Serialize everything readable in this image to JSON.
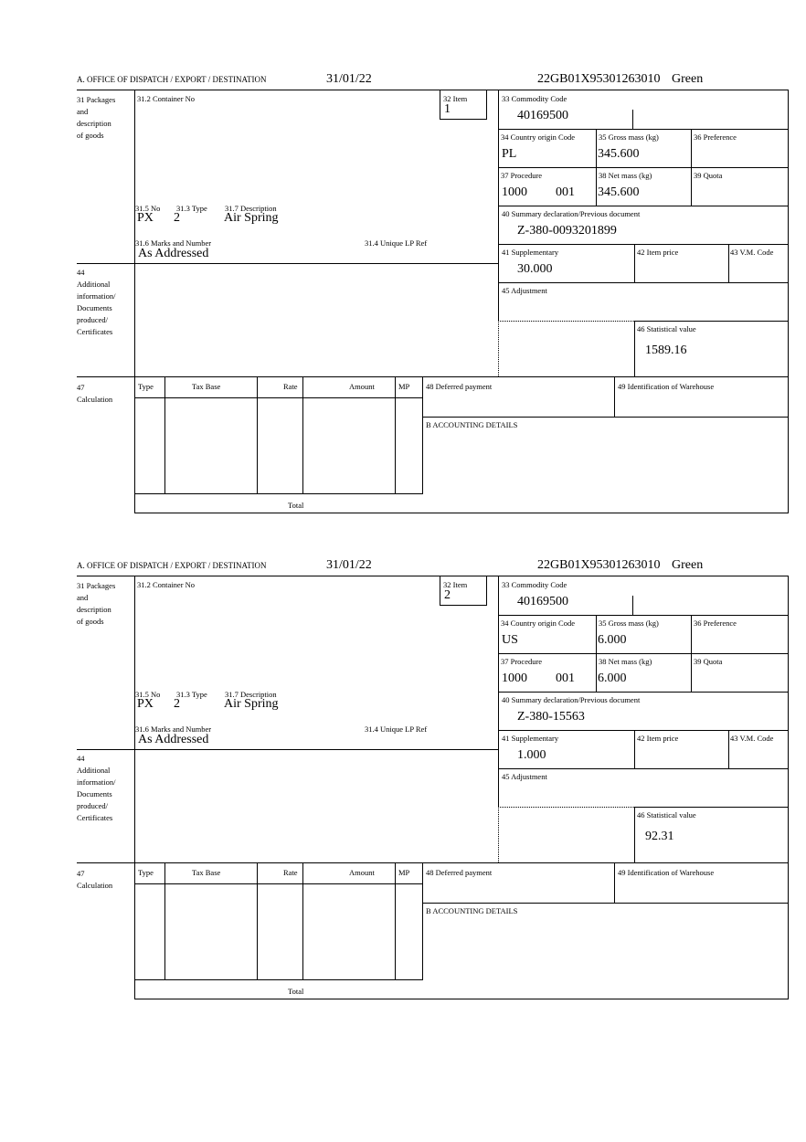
{
  "labels": {
    "office": "A.  OFFICE OF DISPATCH / EXPORT / DESTINATION",
    "box31": [
      "31 Packages",
      "and",
      "description",
      "of goods"
    ],
    "container": "31.2 Container No",
    "item": "32 Item",
    "no": "31.5 No",
    "type": "31.3 Type",
    "description": "31.7 Description",
    "marks": "31.6 Marks and Number",
    "unique": "31.4 Unique LP Ref",
    "commodity": "33 Commodity Code",
    "origin": "34 Country origin Code",
    "gross": "35 Gross mass (kg)",
    "preference": "36 Preference",
    "procedure": "37 Procedure",
    "net": "38 Net mass (kg)",
    "quota": "39 Quota",
    "summary": "40 Summary declaration/Previous document",
    "supplementary": "41 Supplementary",
    "item_price": "42 Item price",
    "vm_code": "43 V.M. Code",
    "box44": [
      "44",
      "Additional",
      "information/",
      "Documents",
      "produced/",
      "Certificates"
    ],
    "adjustment": "45 Adjustment",
    "statistical": "46 Statistical value",
    "box47": [
      "47",
      "Calculation"
    ],
    "calc_headers": [
      "Type",
      "Tax Base",
      "Rate",
      "Amount",
      "MP"
    ],
    "total": "Total",
    "deferred": "48 Deferred payment",
    "warehouse": "49 Identification of Warehouse",
    "accounting": "B ACCOUNTING DETAILS"
  },
  "items": [
    {
      "date": "31/01/22",
      "reference": "22GB01X95301263010",
      "route": "Green",
      "item_no": "1",
      "pkg_no": "PX",
      "pkg_type": "2",
      "description": "Air Spring",
      "marks": "As Addressed",
      "commodity_code": "40169500",
      "origin": "PL",
      "gross_mass": "345.600",
      "procedure": "1000",
      "procedure_add": "001",
      "net_mass": "345.600",
      "previous_document": "Z-380-0093201899",
      "supplementary": "30.000",
      "statistical_value": "1589.16"
    },
    {
      "date": "31/01/22",
      "reference": "22GB01X95301263010",
      "route": "Green",
      "item_no": "2",
      "pkg_no": "PX",
      "pkg_type": "2",
      "description": "Air Spring",
      "marks": "As Addressed",
      "commodity_code": "40169500",
      "origin": "US",
      "gross_mass": "6.000",
      "procedure": "1000",
      "procedure_add": "001",
      "net_mass": "6.000",
      "previous_document": "Z-380-15563",
      "supplementary": "1.000",
      "statistical_value": "92.31"
    }
  ]
}
